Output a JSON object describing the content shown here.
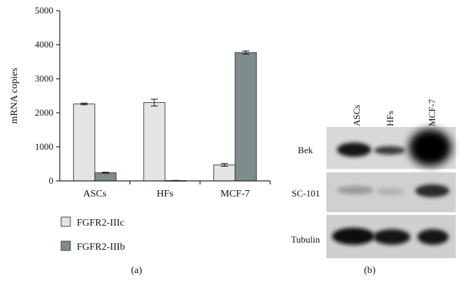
{
  "chart_data": {
    "type": "bar",
    "ylabel": "mRNA copies",
    "ylim": [
      0,
      5000
    ],
    "yticks": [
      0,
      1000,
      2000,
      3000,
      4000,
      5000
    ],
    "categories": [
      "ASCs",
      "HFs",
      "MCF-7"
    ],
    "series": [
      {
        "name": "FGFR2-IIIc",
        "values": [
          2260,
          2300,
          470
        ],
        "errors": [
          25,
          100,
          40
        ],
        "color": "#e3e5e3"
      },
      {
        "name": "FGFR2-IIIb",
        "values": [
          240,
          10,
          3770
        ],
        "errors": [
          15,
          5,
          45
        ],
        "color": "#7f8c8c"
      }
    ],
    "grid": false,
    "legend_position": "bottom-left",
    "panel_label": "(a)"
  },
  "blot": {
    "panel_label": "(b)",
    "lanes": [
      "ASCs",
      "HFs",
      "MCF-7"
    ],
    "rows": [
      {
        "label": "Bek"
      },
      {
        "label": "SC-101"
      },
      {
        "label": "Tubulin"
      }
    ]
  }
}
